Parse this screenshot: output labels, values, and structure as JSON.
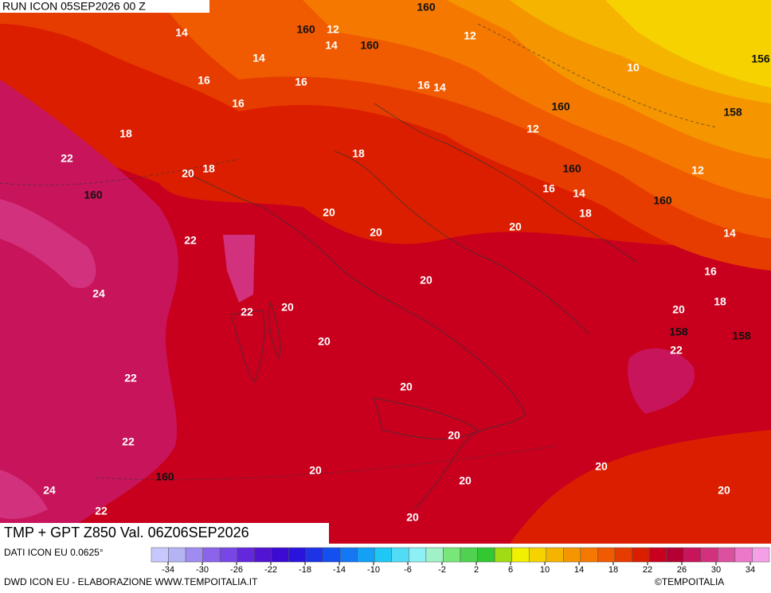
{
  "header": {
    "run": "RUN ICON 05SEP2026 00 Z"
  },
  "map": {
    "temperature_labels": [
      14,
      12,
      14,
      12,
      14,
      16,
      16,
      16,
      14,
      10,
      16,
      18,
      12,
      22,
      20,
      18,
      18,
      12,
      16,
      14,
      18,
      20,
      20,
      20,
      22,
      14,
      16,
      20,
      24,
      20,
      22,
      20,
      18,
      22,
      20,
      22,
      20,
      20,
      22,
      20,
      20,
      20,
      20,
      24,
      22,
      20
    ],
    "geopotential_labels": [
      160,
      160,
      160,
      156,
      160,
      158,
      160,
      160,
      160,
      158,
      158,
      160
    ]
  },
  "footer": {
    "title": "TMP + GPT Z850 Val. 06Z06SEP2026",
    "source": "DATI ICON EU 0.0625°",
    "credit": "DWD ICON EU - ELABORAZIONE WWW.TEMPOITALIA.IT",
    "copyright": "©TEMPOITALIA"
  },
  "colorbar": {
    "ticks": [
      -34,
      -30,
      -26,
      -22,
      -18,
      -14,
      -10,
      -6,
      -2,
      2,
      6,
      10,
      14,
      18,
      22,
      26,
      30,
      34
    ],
    "colors": [
      "#c8c8ff",
      "#b4b4f5",
      "#a08cf0",
      "#8c64eb",
      "#7846e6",
      "#6428dc",
      "#5014d2",
      "#3c0ad2",
      "#2814dc",
      "#1e32e6",
      "#1450f0",
      "#1478f5",
      "#14a0f5",
      "#1ec8f5",
      "#50dcf5",
      "#8cf0f5",
      "#a0f0c8",
      "#78e678",
      "#50d250",
      "#32c832",
      "#a0dc14",
      "#f0f000",
      "#f5d200",
      "#f5b400",
      "#f59600",
      "#f57800",
      "#f05a00",
      "#e63c00",
      "#dc1e00",
      "#c8001e",
      "#b40032",
      "#c8145a",
      "#d2327d",
      "#dc50a0",
      "#eb78c8",
      "#f5a0e6"
    ]
  }
}
